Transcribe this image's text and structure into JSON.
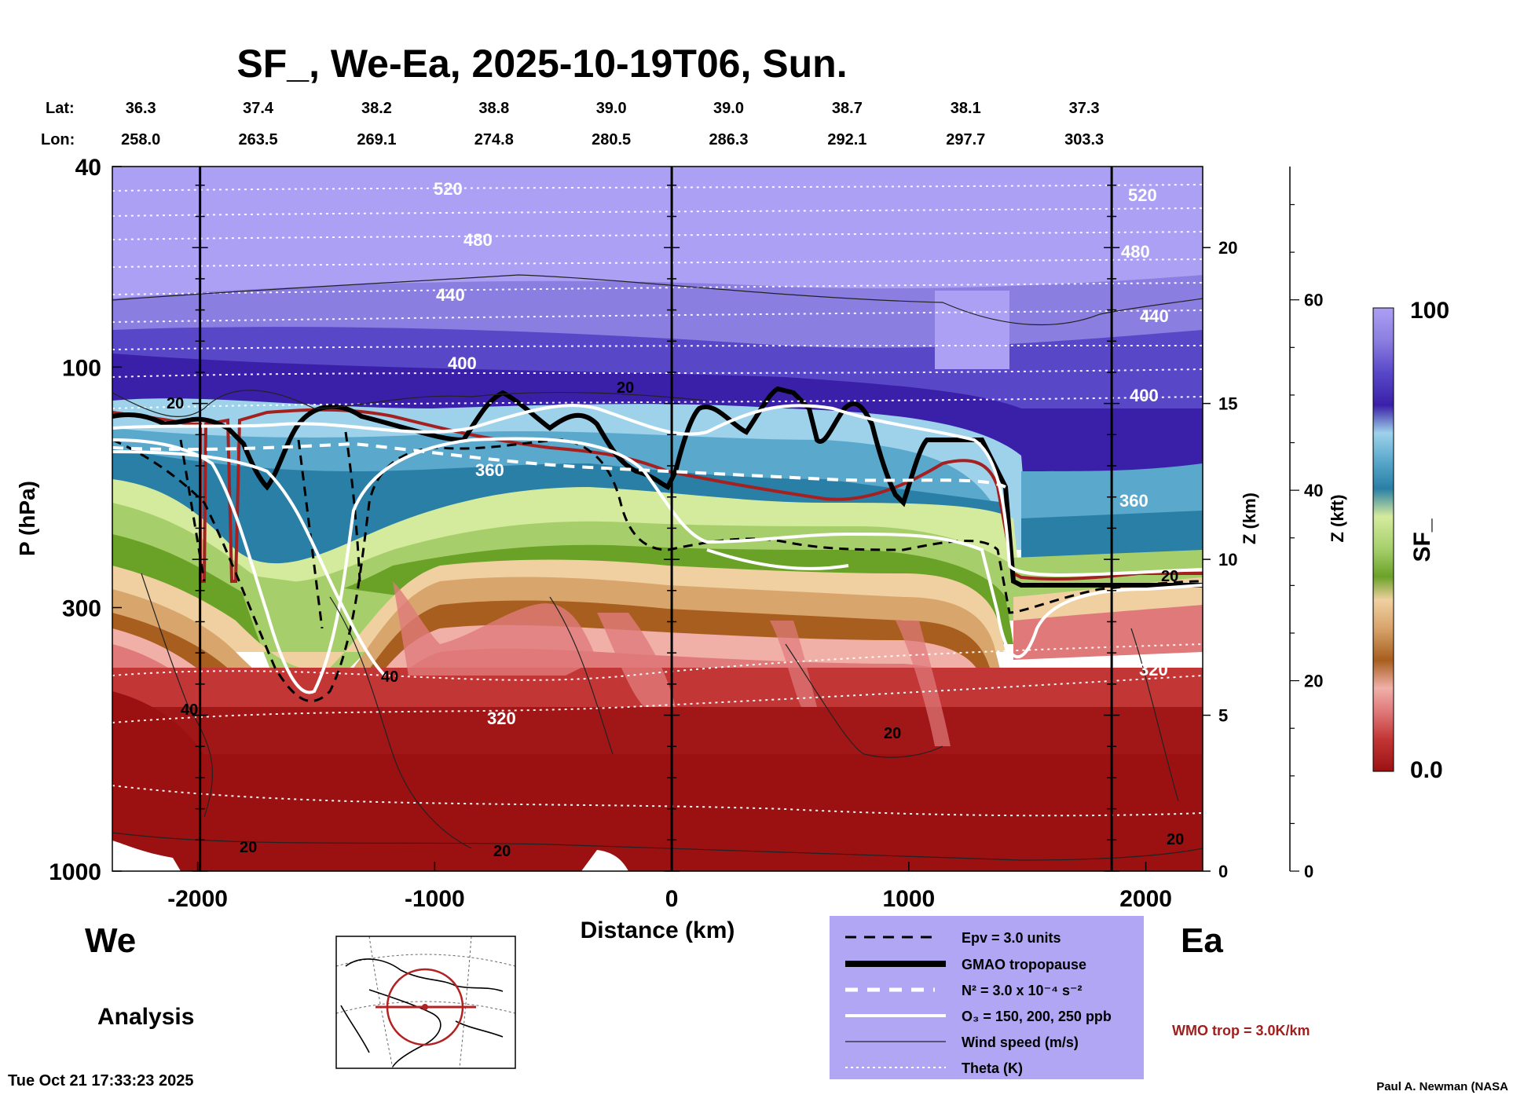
{
  "chart_data": {
    "type": "heatmap",
    "title": "SF_, We-Ea, 2025-10-19T06, Sun.",
    "xlabel": "Distance (km)",
    "ylabel": "P (hPa)",
    "ylabel_right_km": "Z (km)",
    "ylabel_right_kft": "Z (kft)",
    "colorbar_label": "SF_",
    "colorbar_range": [
      0.0,
      100
    ],
    "colorbar_max_label": "100",
    "colorbar_min_label": "0.0",
    "xlim": [
      -2360,
      2240
    ],
    "ylim_hpa": [
      1000,
      40
    ],
    "ylim_km": [
      0,
      22.6
    ],
    "ylim_kft": [
      0,
      74
    ],
    "x_ticks": [
      -2000,
      -1000,
      0,
      1000,
      2000
    ],
    "x_tick_labels": [
      "-2000",
      "-1000",
      "0",
      "1000",
      "2000"
    ],
    "p_ticks": [
      40,
      100,
      300,
      1000
    ],
    "p_tick_labels": [
      "40",
      "100",
      "300",
      "1000"
    ],
    "z_km_ticks": [
      0,
      5,
      10,
      15,
      20
    ],
    "z_km_tick_labels": [
      "0",
      "5",
      "10",
      "15",
      "20"
    ],
    "z_kft_ticks": [
      0,
      20,
      40,
      60
    ],
    "z_kft_tick_labels": [
      "0",
      "20",
      "40",
      "60"
    ],
    "vertical_markers_km": [
      -1990,
      0,
      1856
    ],
    "location_labels": {
      "lat_label": "Lat:",
      "lon_label": "Lon:",
      "positions_km": [
        -2240,
        -1745,
        -1245,
        -750,
        -255,
        240,
        740,
        1240,
        1740
      ],
      "lat": [
        "36.3",
        "37.4",
        "38.2",
        "38.8",
        "39.0",
        "39.0",
        "38.7",
        "38.1",
        "37.3"
      ],
      "lon": [
        "258.0",
        "263.5",
        "269.1",
        "274.8",
        "280.5",
        "286.3",
        "292.1",
        "297.7",
        "303.3"
      ]
    },
    "theta_contours_K": [
      {
        "level": 320,
        "label": "320"
      },
      {
        "level": 360,
        "label": "360"
      },
      {
        "level": 400,
        "label": "400"
      },
      {
        "level": 440,
        "label": "440"
      },
      {
        "level": 480,
        "label": "480"
      },
      {
        "level": 520,
        "label": "520"
      }
    ],
    "wind_contour_labels": [
      "20",
      "40"
    ],
    "colorbar_stops": [
      "#9b1111",
      "#c33636",
      "#e07a7a",
      "#f0b0a8",
      "#a85e1e",
      "#d8a56c",
      "#f0d0a0",
      "#6aa228",
      "#a6cf6c",
      "#d4eb9e",
      "#2a7fa6",
      "#5aa8cc",
      "#9ed2ea",
      "#3a20a8",
      "#5848c8",
      "#8a7ee0",
      "#aca0f4"
    ]
  },
  "side_labels": {
    "left": "We",
    "right": "Ea"
  },
  "analysis_label": "Analysis",
  "legend": {
    "items": [
      "Epv = 3.0 units",
      "GMAO tropopause",
      "N² = 3.0 x 10⁻⁴ s⁻²",
      "O₃ = 150, 200, 250 ppb",
      "Wind speed (m/s)",
      "Theta (K)"
    ],
    "background": "#b0a6f4"
  },
  "wmo_label": "WMO trop = 3.0K/km",
  "wmo_color": "#a01e1e",
  "tropopause_color": "#a52020",
  "footer": {
    "timestamp": "Tue Oct 21 17:33:23 2025",
    "credit": "Paul A. Newman (NASA"
  },
  "map_icon": "globe-map-icon"
}
